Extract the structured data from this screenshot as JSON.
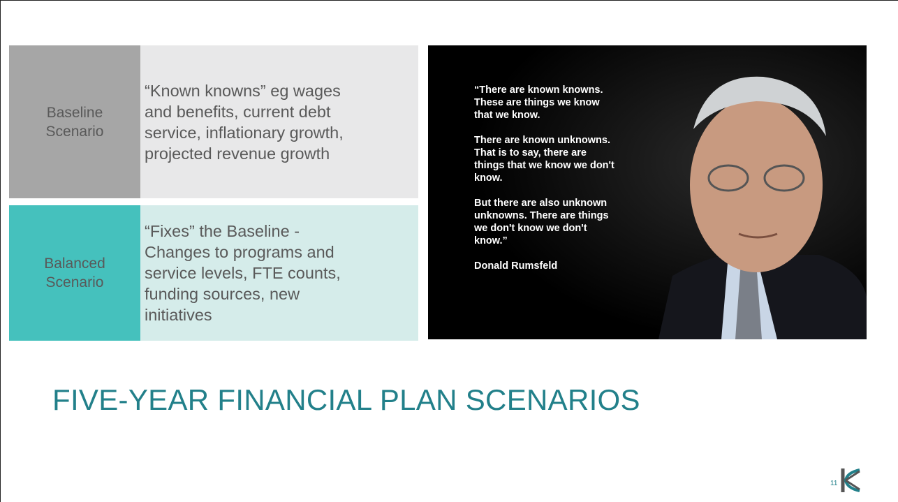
{
  "table": {
    "rows": [
      {
        "label": [
          "Baseline",
          "Scenario"
        ],
        "description": [
          "“Known knowns” eg wages",
          "and benefits, current debt",
          "service, inflationary growth,",
          "projected revenue growth"
        ]
      },
      {
        "label": [
          "Balanced",
          "Scenario"
        ],
        "description": [
          "“Fixes” the Baseline -",
          "Changes to programs and",
          "service levels, FTE counts,",
          "funding sources, new",
          "initiatives"
        ]
      }
    ]
  },
  "quote": {
    "paragraphs": [
      [
        "“There are known knowns.",
        "These are things we know",
        "that we know."
      ],
      [
        "There are known unknowns.",
        "That is to say, there are",
        "things that we know we don't",
        "know."
      ],
      [
        "But there are also unknown",
        "unknowns. There are things",
        "we don't know we don't",
        "know.”"
      ],
      [
        "Donald Rumsfeld"
      ]
    ]
  },
  "title": "FIVE-YEAR FINANCIAL PLAN SCENARIOS",
  "page_number": "11"
}
